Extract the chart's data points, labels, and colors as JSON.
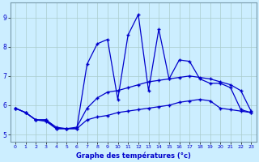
{
  "xlabel": "Graphe des températures (°c)",
  "hours": [
    0,
    1,
    2,
    3,
    4,
    5,
    6,
    7,
    8,
    9,
    10,
    11,
    12,
    13,
    14,
    15,
    16,
    17,
    18,
    19,
    20,
    21,
    22,
    23
  ],
  "y_top": [
    5.9,
    5.75,
    5.5,
    5.5,
    5.2,
    5.2,
    5.2,
    7.4,
    8.1,
    8.25,
    6.2,
    8.4,
    9.1,
    6.5,
    8.6,
    6.9,
    7.55,
    7.5,
    6.9,
    6.75,
    6.75,
    6.6,
    5.85,
    5.75
  ],
  "y_mid": [
    5.9,
    5.75,
    5.5,
    5.5,
    5.25,
    5.2,
    5.25,
    5.9,
    6.25,
    6.45,
    6.5,
    6.6,
    6.7,
    6.8,
    6.85,
    6.9,
    6.95,
    7.0,
    6.95,
    6.9,
    6.8,
    6.7,
    6.5,
    5.8
  ],
  "y_bot": [
    5.9,
    5.75,
    5.5,
    5.45,
    5.2,
    5.2,
    5.2,
    5.5,
    5.6,
    5.65,
    5.75,
    5.8,
    5.85,
    5.9,
    5.95,
    6.0,
    6.1,
    6.15,
    6.2,
    6.15,
    5.9,
    5.85,
    5.8,
    5.75
  ],
  "bg_color": "#cceeff",
  "line_color": "#0000cc",
  "grid_color": "#aacccc",
  "ylim": [
    4.75,
    9.5
  ],
  "yticks": [
    5,
    6,
    7,
    8,
    9
  ],
  "xlim": [
    -0.5,
    23.5
  ]
}
